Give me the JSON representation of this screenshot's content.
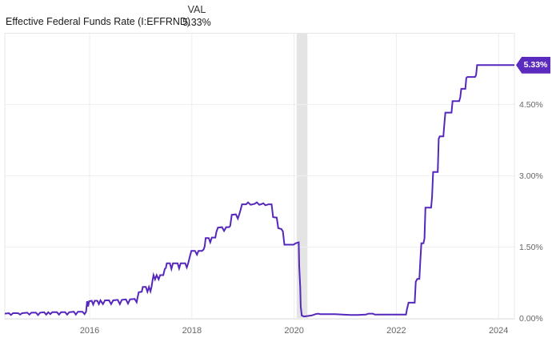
{
  "header": {
    "title": "Effective Federal Funds Rate (I:EFFRND)",
    "val_label": "VAL",
    "val_value": "5.33%"
  },
  "colors": {
    "line": "#5527bd",
    "tag_bg": "#5b2abe",
    "tag_text": "#ffffff",
    "recession_band": "#e4e4e4",
    "grid_horizontal": "#f0f0f0",
    "grid_vertical": "#ededed",
    "plot_border": "#e7e7e7",
    "tick_text": "#666666"
  },
  "chart_data": {
    "type": "line",
    "title": "Effective Federal Funds Rate (I:EFFRND)",
    "xlabel": "",
    "ylabel": "",
    "xlim": [
      2014.34,
      2024.31
    ],
    "ylim": [
      0,
      6
    ],
    "grid": true,
    "legend_position": "none",
    "last_label": "5.33%",
    "x_ticks": [
      {
        "value": 2016,
        "label": "2016"
      },
      {
        "value": 2018,
        "label": "2018"
      },
      {
        "value": 2020,
        "label": "2020"
      },
      {
        "value": 2022,
        "label": "2022"
      },
      {
        "value": 2024,
        "label": "2024"
      }
    ],
    "y_ticks": [
      {
        "value": 0.0,
        "label": "0.00%"
      },
      {
        "value": 1.5,
        "label": "1.50%"
      },
      {
        "value": 3.0,
        "label": "3.00%"
      },
      {
        "value": 4.5,
        "label": "4.50%"
      }
    ],
    "recession_band": {
      "from": 2020.05,
      "to": 2020.26
    },
    "series": [
      {
        "name": "Effective Federal Funds Rate",
        "points": [
          [
            2014.34,
            0.1
          ],
          [
            2014.42,
            0.11
          ],
          [
            2014.46,
            0.07
          ],
          [
            2014.5,
            0.11
          ],
          [
            2014.6,
            0.11
          ],
          [
            2014.64,
            0.08
          ],
          [
            2014.68,
            0.11
          ],
          [
            2014.78,
            0.12
          ],
          [
            2014.82,
            0.08
          ],
          [
            2014.86,
            0.12
          ],
          [
            2014.95,
            0.12
          ],
          [
            2014.99,
            0.07
          ],
          [
            2015.03,
            0.12
          ],
          [
            2015.11,
            0.13
          ],
          [
            2015.15,
            0.08
          ],
          [
            2015.19,
            0.13
          ],
          [
            2015.23,
            0.09
          ],
          [
            2015.27,
            0.13
          ],
          [
            2015.36,
            0.13
          ],
          [
            2015.4,
            0.08
          ],
          [
            2015.44,
            0.13
          ],
          [
            2015.52,
            0.13
          ],
          [
            2015.56,
            0.08
          ],
          [
            2015.6,
            0.13
          ],
          [
            2015.69,
            0.14
          ],
          [
            2015.73,
            0.08
          ],
          [
            2015.77,
            0.14
          ],
          [
            2015.86,
            0.14
          ],
          [
            2015.9,
            0.09
          ],
          [
            2015.93,
            0.14
          ],
          [
            2015.95,
            0.36
          ],
          [
            2015.97,
            0.25
          ],
          [
            2015.99,
            0.36
          ],
          [
            2016.04,
            0.37
          ],
          [
            2016.07,
            0.29
          ],
          [
            2016.1,
            0.37
          ],
          [
            2016.15,
            0.37
          ],
          [
            2016.18,
            0.3
          ],
          [
            2016.21,
            0.38
          ],
          [
            2016.26,
            0.3
          ],
          [
            2016.3,
            0.38
          ],
          [
            2016.38,
            0.38
          ],
          [
            2016.42,
            0.3
          ],
          [
            2016.46,
            0.38
          ],
          [
            2016.55,
            0.39
          ],
          [
            2016.59,
            0.3
          ],
          [
            2016.63,
            0.39
          ],
          [
            2016.71,
            0.4
          ],
          [
            2016.75,
            0.31
          ],
          [
            2016.79,
            0.4
          ],
          [
            2016.88,
            0.41
          ],
          [
            2016.92,
            0.34
          ],
          [
            2016.94,
            0.45
          ],
          [
            2016.96,
            0.55
          ],
          [
            2017.02,
            0.56
          ],
          [
            2017.04,
            0.66
          ],
          [
            2017.1,
            0.66
          ],
          [
            2017.13,
            0.56
          ],
          [
            2017.16,
            0.66
          ],
          [
            2017.19,
            0.57
          ],
          [
            2017.21,
            0.66
          ],
          [
            2017.23,
            0.79
          ],
          [
            2017.25,
            0.91
          ],
          [
            2017.28,
            0.82
          ],
          [
            2017.31,
            0.91
          ],
          [
            2017.35,
            0.82
          ],
          [
            2017.38,
            0.91
          ],
          [
            2017.44,
            0.91
          ],
          [
            2017.47,
            1.04
          ],
          [
            2017.49,
            1.06
          ],
          [
            2017.51,
            1.16
          ],
          [
            2017.57,
            1.16
          ],
          [
            2017.6,
            1.04
          ],
          [
            2017.63,
            1.16
          ],
          [
            2017.72,
            1.16
          ],
          [
            2017.75,
            1.05
          ],
          [
            2017.78,
            1.16
          ],
          [
            2017.87,
            1.16
          ],
          [
            2017.9,
            1.07
          ],
          [
            2017.93,
            1.17
          ],
          [
            2017.96,
            1.3
          ],
          [
            2017.99,
            1.42
          ],
          [
            2018.06,
            1.42
          ],
          [
            2018.1,
            1.34
          ],
          [
            2018.13,
            1.42
          ],
          [
            2018.2,
            1.42
          ],
          [
            2018.23,
            1.45
          ],
          [
            2018.25,
            1.51
          ],
          [
            2018.27,
            1.69
          ],
          [
            2018.33,
            1.69
          ],
          [
            2018.36,
            1.6
          ],
          [
            2018.39,
            1.7
          ],
          [
            2018.46,
            1.7
          ],
          [
            2018.48,
            1.82
          ],
          [
            2018.51,
            1.91
          ],
          [
            2018.59,
            1.92
          ],
          [
            2018.63,
            1.84
          ],
          [
            2018.67,
            1.92
          ],
          [
            2018.73,
            1.92
          ],
          [
            2018.75,
            1.95
          ],
          [
            2018.78,
            2.18
          ],
          [
            2018.86,
            2.19
          ],
          [
            2018.9,
            2.1
          ],
          [
            2018.93,
            2.2
          ],
          [
            2018.95,
            2.27
          ],
          [
            2018.98,
            2.4
          ],
          [
            2019.06,
            2.4
          ],
          [
            2019.1,
            2.44
          ],
          [
            2019.15,
            2.39
          ],
          [
            2019.23,
            2.41
          ],
          [
            2019.27,
            2.44
          ],
          [
            2019.32,
            2.39
          ],
          [
            2019.4,
            2.42
          ],
          [
            2019.44,
            2.38
          ],
          [
            2019.5,
            2.4
          ],
          [
            2019.56,
            2.4
          ],
          [
            2019.59,
            2.13
          ],
          [
            2019.66,
            2.12
          ],
          [
            2019.69,
            1.9
          ],
          [
            2019.75,
            1.88
          ],
          [
            2019.78,
            1.83
          ],
          [
            2019.81,
            1.55
          ],
          [
            2019.9,
            1.55
          ],
          [
            2019.99,
            1.55
          ],
          [
            2020.03,
            1.58
          ],
          [
            2020.09,
            1.6
          ],
          [
            2020.1,
            1.1
          ],
          [
            2020.12,
            0.65
          ],
          [
            2020.13,
            0.25
          ],
          [
            2020.15,
            0.06
          ],
          [
            2020.19,
            0.04
          ],
          [
            2020.27,
            0.05
          ],
          [
            2020.34,
            0.06
          ],
          [
            2020.42,
            0.09
          ],
          [
            2020.47,
            0.1
          ],
          [
            2020.51,
            0.09
          ],
          [
            2020.65,
            0.09
          ],
          [
            2020.8,
            0.09
          ],
          [
            2020.95,
            0.08
          ],
          [
            2021.1,
            0.07
          ],
          [
            2021.25,
            0.07
          ],
          [
            2021.4,
            0.08
          ],
          [
            2021.46,
            0.1
          ],
          [
            2021.54,
            0.1
          ],
          [
            2021.58,
            0.08
          ],
          [
            2021.75,
            0.08
          ],
          [
            2021.95,
            0.08
          ],
          [
            2022.1,
            0.08
          ],
          [
            2022.19,
            0.08
          ],
          [
            2022.21,
            0.2
          ],
          [
            2022.24,
            0.33
          ],
          [
            2022.36,
            0.33
          ],
          [
            2022.38,
            0.77
          ],
          [
            2022.41,
            0.83
          ],
          [
            2022.45,
            0.83
          ],
          [
            2022.47,
            1.21
          ],
          [
            2022.49,
            1.58
          ],
          [
            2022.53,
            1.58
          ],
          [
            2022.55,
            1.68
          ],
          [
            2022.57,
            2.33
          ],
          [
            2022.68,
            2.33
          ],
          [
            2022.7,
            2.56
          ],
          [
            2022.72,
            3.08
          ],
          [
            2022.81,
            3.08
          ],
          [
            2022.83,
            3.78
          ],
          [
            2022.85,
            3.83
          ],
          [
            2022.92,
            3.83
          ],
          [
            2022.94,
            4.1
          ],
          [
            2022.96,
            4.33
          ],
          [
            2023.08,
            4.33
          ],
          [
            2023.1,
            4.57
          ],
          [
            2023.23,
            4.57
          ],
          [
            2023.25,
            4.65
          ],
          [
            2023.27,
            4.83
          ],
          [
            2023.35,
            4.83
          ],
          [
            2023.37,
            5.06
          ],
          [
            2023.39,
            5.08
          ],
          [
            2023.54,
            5.08
          ],
          [
            2023.56,
            5.12
          ],
          [
            2023.58,
            5.33
          ],
          [
            2024.31,
            5.33
          ]
        ]
      }
    ]
  }
}
